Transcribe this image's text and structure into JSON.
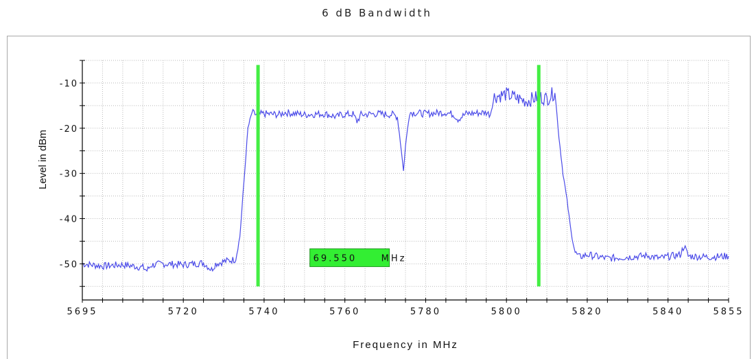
{
  "chart_data": {
    "type": "line",
    "title": "6 dB Bandwidth",
    "xlabel": "Frequency in MHz",
    "ylabel": "Level in dBm",
    "xlim": [
      5695,
      5855
    ],
    "ylim": [
      -58,
      -5
    ],
    "x_ticks": [
      {
        "value": 5695,
        "label": "5695"
      },
      {
        "value": 5720,
        "label": "5720"
      },
      {
        "value": 5740,
        "label": "5740"
      },
      {
        "value": 5760,
        "label": "5760"
      },
      {
        "value": 5780,
        "label": "5780"
      },
      {
        "value": 5800,
        "label": "5800"
      },
      {
        "value": 5820,
        "label": "5820"
      },
      {
        "value": 5840,
        "label": "5840"
      },
      {
        "value": 5855,
        "label": "5855"
      }
    ],
    "y_ticks": [
      {
        "value": -10,
        "label": "-10"
      },
      {
        "value": -20,
        "label": "-20"
      },
      {
        "value": -30,
        "label": "-30"
      },
      {
        "value": -40,
        "label": "-40"
      },
      {
        "value": -50,
        "label": "-50"
      }
    ],
    "grid": true,
    "series": [
      {
        "color": "#4a4ae8",
        "x": [
          5695,
          5700,
          5705,
          5710,
          5711,
          5712,
          5715,
          5720,
          5725,
          5727,
          5728,
          5730,
          5733,
          5734,
          5735,
          5736,
          5737,
          5738,
          5740,
          5744,
          5745,
          5750,
          5755,
          5758,
          5759,
          5762,
          5763,
          5764,
          5768,
          5772,
          5773,
          5774,
          5774.5,
          5775,
          5776,
          5780,
          5785,
          5787,
          5788,
          5790,
          5795,
          5796,
          5797,
          5800,
          5803,
          5805,
          5808,
          5810,
          5812,
          5813,
          5814,
          5815,
          5816,
          5817,
          5818,
          5820,
          5822,
          5823,
          5825,
          5830,
          5835,
          5838,
          5840,
          5843,
          5844,
          5845,
          5850,
          5855
        ],
        "y": [
          -50,
          -50.5,
          -50.2,
          -50.8,
          -51.5,
          -50.3,
          -50,
          -50.2,
          -49.8,
          -51.3,
          -50,
          -49.5,
          -49,
          -44,
          -32,
          -20,
          -16.5,
          -17,
          -16.8,
          -17,
          -16.5,
          -17,
          -16.8,
          -17.5,
          -17,
          -16.9,
          -18.5,
          -17,
          -16.8,
          -17,
          -17.5,
          -25,
          -29.5,
          -24,
          -16.5,
          -16.8,
          -16.5,
          -17,
          -18,
          -16.8,
          -16.5,
          -17,
          -13,
          -12.5,
          -13.5,
          -14,
          -13,
          -13.5,
          -12,
          -22,
          -30,
          -36,
          -43,
          -47.5,
          -48.5,
          -48,
          -48.3,
          -48.5,
          -48.8,
          -48.5,
          -48.2,
          -48.8,
          -48.4,
          -48,
          -46,
          -48.3,
          -48.5,
          -48.3
        ]
      }
    ],
    "markers": [
      {
        "x": 5738.5,
        "y_top": -6,
        "y_bottom": -55,
        "color": "#44ee44"
      },
      {
        "x": 5808,
        "y_top": -6,
        "y_bottom": -55,
        "color": "#44ee44"
      }
    ],
    "annotation": {
      "value_text": "69.550",
      "unit_text": " MHz",
      "x": 5760.5,
      "y": -48.5,
      "fill": "#33ee33",
      "text_color": "#111111"
    }
  }
}
